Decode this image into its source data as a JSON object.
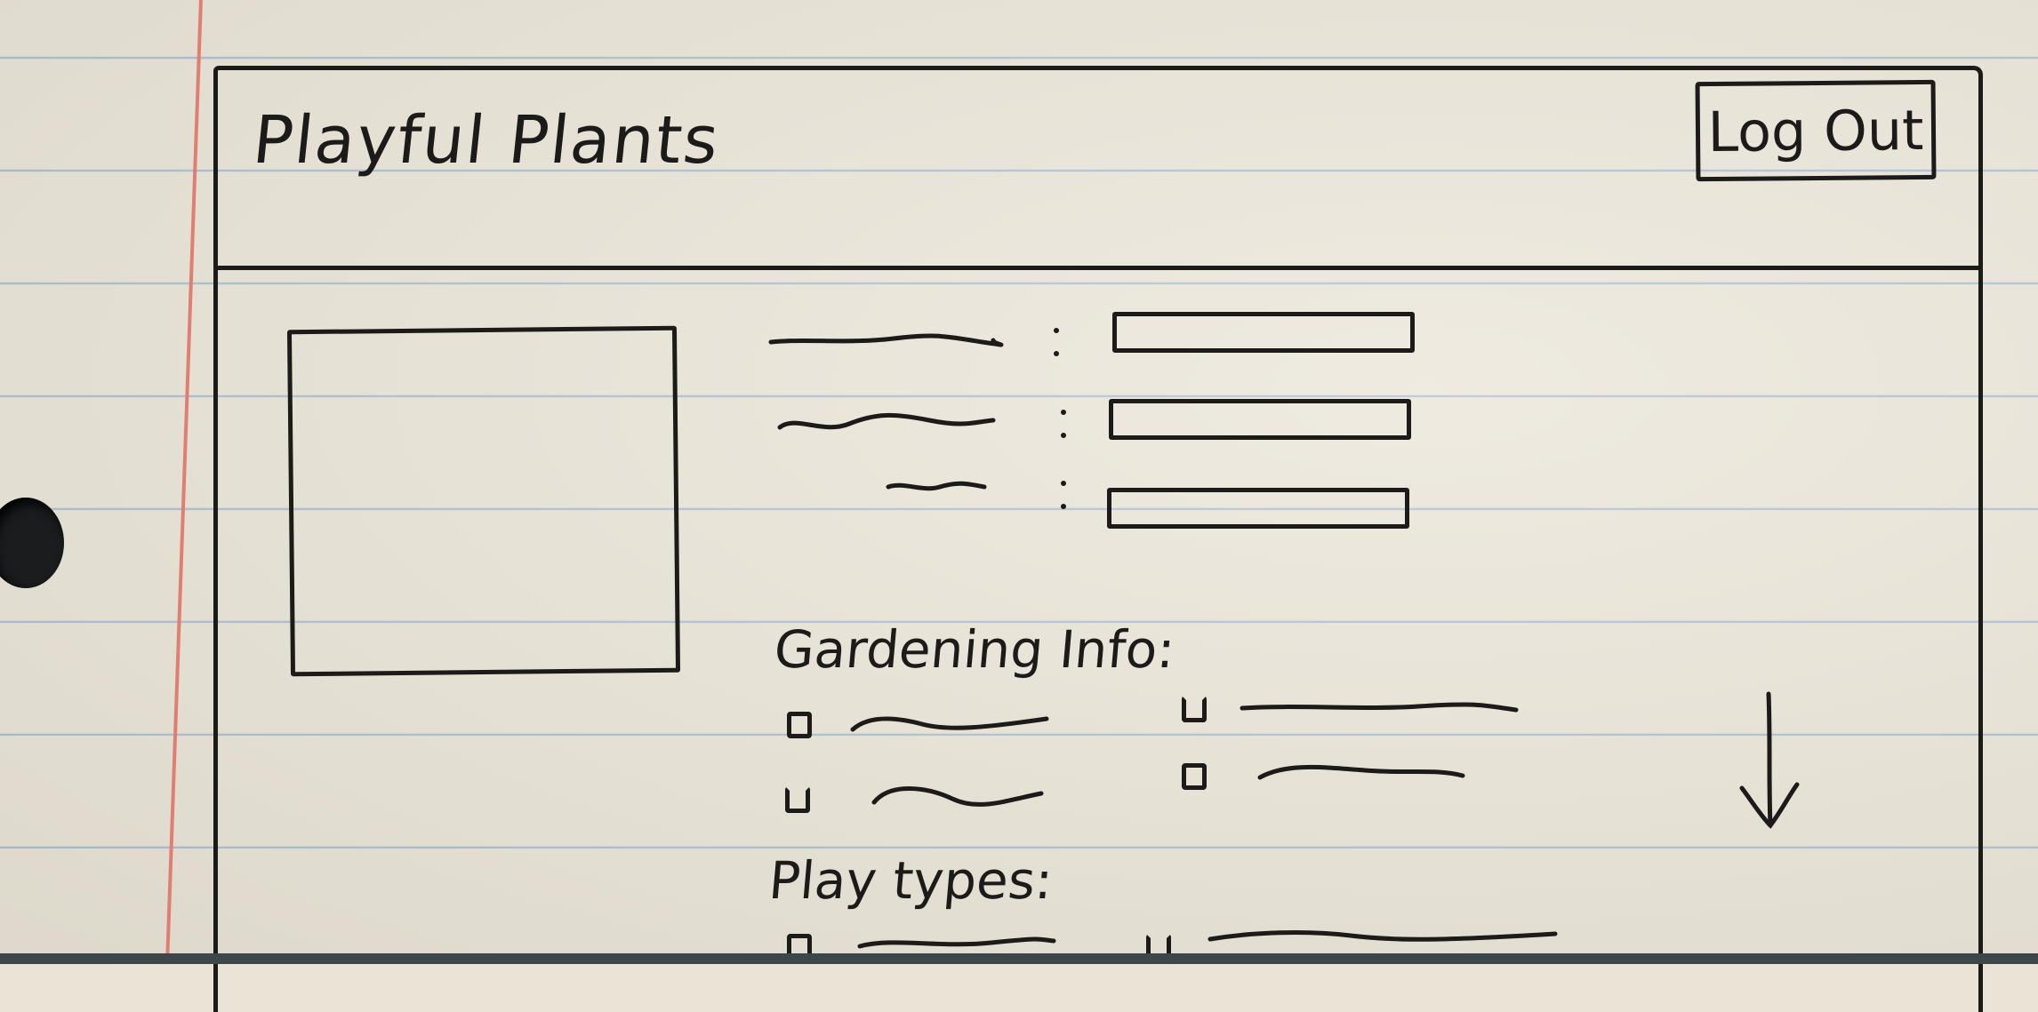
{
  "header": {
    "app_title": "Playful Plants",
    "logout_label": "Log Out"
  },
  "detail": {
    "fields": [
      {
        "value": ""
      },
      {
        "value": ""
      },
      {
        "value": ""
      }
    ]
  },
  "sections": {
    "gardening_info": {
      "heading": "Gardening Info:",
      "options": [
        {
          "checked": false
        },
        {
          "checked": false
        },
        {
          "checked": false
        },
        {
          "checked": false
        }
      ]
    },
    "play_types": {
      "heading": "Play types:",
      "options": [
        {
          "checked": false
        },
        {
          "checked": false
        }
      ]
    }
  },
  "colors": {
    "ink": "#1d1a1a",
    "paper": "#e9e4d6",
    "rule_line": "#a9bdd0",
    "margin_line": "#e07e72"
  },
  "icons": {
    "scroll_indicator": "arrow-down-icon"
  }
}
